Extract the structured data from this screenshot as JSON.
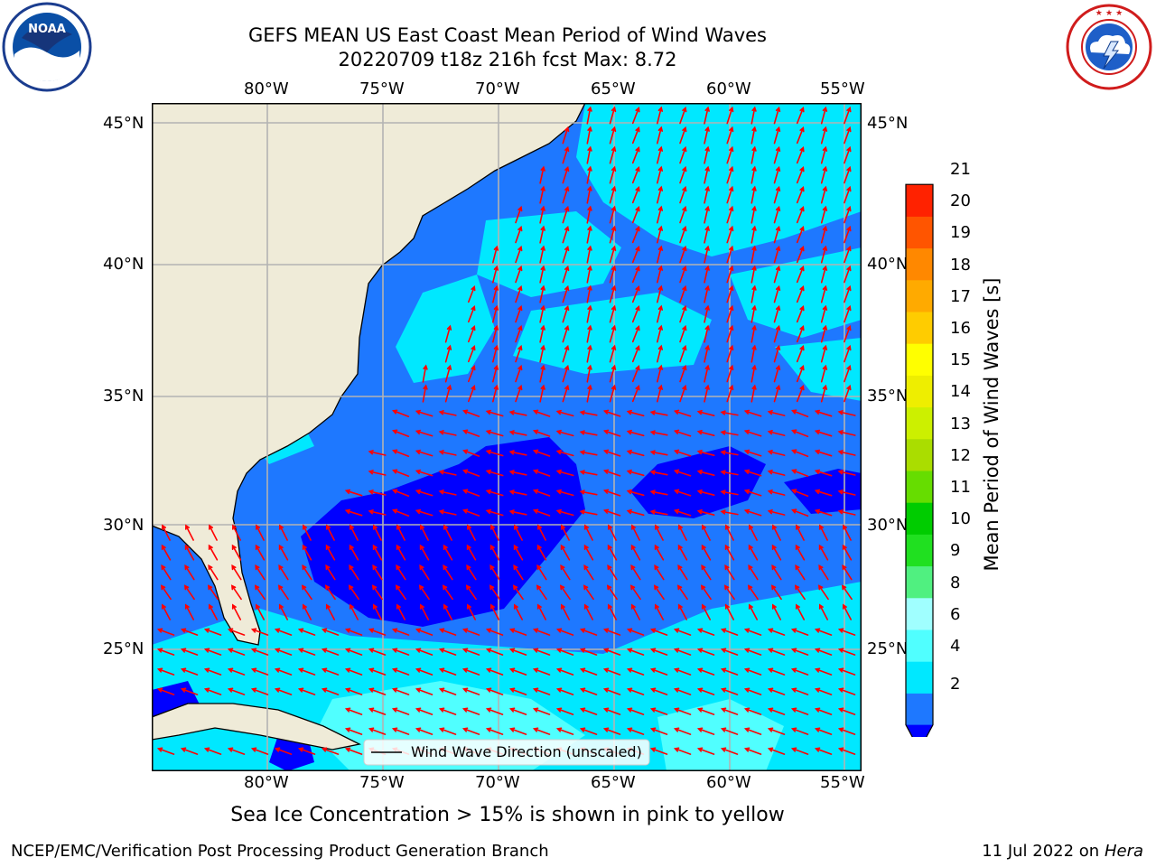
{
  "title": "GEFS MEAN US East Coast Mean Period of Wind Waves",
  "subtitle": "20220709 t18z 216h fcst   Max: 8.72",
  "logos": {
    "left": "NOAA",
    "right": "NATIONAL WEATHER SERVICE"
  },
  "longitude_labels": [
    "80°W",
    "75°W",
    "70°W",
    "65°W",
    "60°W",
    "55°W"
  ],
  "latitude_labels": [
    "45°N",
    "40°N",
    "35°N",
    "30°N",
    "25°N"
  ],
  "legend": {
    "label": "Wind Wave Direction (unscaled)"
  },
  "colorbar": {
    "label": "Mean Period of Wind Waves [s]",
    "ticks": [
      "2",
      "4",
      "6",
      "8",
      "9",
      "10",
      "11",
      "12",
      "13",
      "14",
      "15",
      "16",
      "17",
      "18",
      "19",
      "20",
      "21"
    ],
    "colors": [
      "#0000ff",
      "#1e78ff",
      "#00e8ff",
      "#50ffff",
      "#a0ffff",
      "#50f080",
      "#20e020",
      "#00cc00",
      "#66dd00",
      "#aadd00",
      "#ccf000",
      "#eeee00",
      "#ffff00",
      "#ffcc00",
      "#ffaa00",
      "#ff8800",
      "#ff5500",
      "#ff2200",
      "#ff0000"
    ]
  },
  "colors": {
    "land": "#efebd8",
    "grid": "#b3b3b3",
    "arrow": "#ff0000",
    "wave_2_4": "#1e78ff",
    "wave_4_6": "#00e8ff",
    "wave_6_8": "#50ffff",
    "wave_lt_2": "#0000ff"
  },
  "footer": {
    "note": "Sea Ice Concentration > 15% is shown in pink to yellow",
    "left": "NCEP/EMC/Verification Post Processing Product Generation Branch",
    "right_date": "11 Jul 2022 on ",
    "right_machine": "Hera"
  }
}
